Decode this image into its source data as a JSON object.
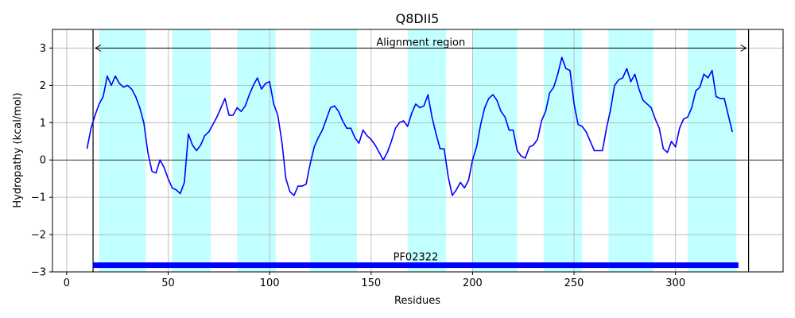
{
  "chart_data": {
    "type": "line",
    "title": "Q8DII5",
    "xlabel": "Residues",
    "ylabel": "Hydropathy (kcal/mol)",
    "xlim": [
      -7,
      353
    ],
    "ylim": [
      -3,
      3.5
    ],
    "xticks": [
      0,
      50,
      100,
      150,
      200,
      250,
      300
    ],
    "yticks": [
      -3,
      -2,
      -1,
      0,
      1,
      2,
      3
    ],
    "ytick_labels": [
      "−3",
      "−2",
      "−1",
      "0",
      "1",
      "2",
      "3"
    ],
    "grid": true,
    "line_color": "#0000ff",
    "highlight_color": "#c2ffff",
    "highlight_regions": [
      [
        16,
        39
      ],
      [
        52,
        71
      ],
      [
        84,
        103
      ],
      [
        120,
        143
      ],
      [
        168,
        187
      ],
      [
        200,
        222
      ],
      [
        235,
        254
      ],
      [
        267,
        289
      ],
      [
        306,
        330
      ]
    ],
    "alignment": {
      "label": "Alignment region",
      "start": 13,
      "end": 336,
      "y": 3.0
    },
    "domain": {
      "label": "PF02322",
      "start": 13,
      "end": 331,
      "y": -2.82,
      "color": "#0000ff"
    },
    "series": [
      {
        "x": [
          10,
          12,
          14,
          16,
          18,
          20,
          22,
          24,
          26,
          28,
          30,
          32,
          34,
          36,
          38,
          40,
          42,
          44,
          46,
          48,
          50,
          52,
          54,
          56,
          58,
          60,
          62,
          64,
          66,
          68,
          70,
          72,
          74,
          76,
          78,
          80,
          82,
          84,
          86,
          88,
          90,
          92,
          94,
          96,
          98,
          100,
          102,
          104,
          106,
          108,
          110,
          112,
          114,
          116,
          118,
          120,
          122,
          124,
          126,
          128,
          130,
          132,
          134,
          136,
          138,
          140,
          142,
          144,
          146,
          148,
          150,
          152,
          154,
          156,
          158,
          160,
          162,
          164,
          166,
          168,
          170,
          172,
          174,
          176,
          178,
          180,
          182,
          184,
          186,
          188,
          190,
          192,
          194,
          196,
          198,
          200,
          202,
          204,
          206,
          208,
          210,
          212,
          214,
          216,
          218,
          220,
          222,
          224,
          226,
          228,
          230,
          232,
          234,
          236,
          238,
          240,
          242,
          244,
          246,
          248,
          250,
          252,
          254,
          256,
          258,
          260,
          262,
          264,
          266,
          268,
          270,
          272,
          274,
          276,
          278,
          280,
          282,
          284,
          286,
          288,
          290,
          292,
          294,
          296,
          298,
          300,
          302,
          304,
          306,
          308,
          310,
          312,
          314,
          316,
          318,
          320,
          322,
          324,
          326,
          328
        ],
        "values": [
          0.3,
          0.85,
          1.2,
          1.5,
          1.7,
          2.25,
          2.0,
          2.25,
          2.05,
          1.95,
          2.0,
          1.9,
          1.7,
          1.4,
          1.0,
          0.2,
          -0.3,
          -0.35,
          0.0,
          -0.2,
          -0.5,
          -0.75,
          -0.8,
          -0.9,
          -0.6,
          0.7,
          0.4,
          0.25,
          0.4,
          0.65,
          0.75,
          0.95,
          1.15,
          1.4,
          1.65,
          1.2,
          1.2,
          1.4,
          1.3,
          1.45,
          1.75,
          2.0,
          2.2,
          1.9,
          2.05,
          2.1,
          1.5,
          1.2,
          0.5,
          -0.5,
          -0.85,
          -0.95,
          -0.7,
          -0.7,
          -0.65,
          -0.1,
          0.35,
          0.6,
          0.8,
          1.1,
          1.4,
          1.45,
          1.3,
          1.05,
          0.85,
          0.85,
          0.6,
          0.45,
          0.8,
          0.65,
          0.55,
          0.4,
          0.2,
          0.0,
          0.2,
          0.5,
          0.85,
          1.0,
          1.05,
          0.9,
          1.25,
          1.5,
          1.4,
          1.45,
          1.75,
          1.15,
          0.7,
          0.3,
          0.3,
          -0.45,
          -0.95,
          -0.8,
          -0.6,
          -0.75,
          -0.55,
          0.0,
          0.35,
          0.95,
          1.4,
          1.65,
          1.75,
          1.6,
          1.3,
          1.15,
          0.8,
          0.8,
          0.25,
          0.1,
          0.05,
          0.35,
          0.4,
          0.55,
          1.05,
          1.3,
          1.8,
          1.95,
          2.3,
          2.75,
          2.45,
          2.4,
          1.5,
          0.95,
          0.9,
          0.75,
          0.5,
          0.25,
          0.25,
          0.25,
          0.85,
          1.35,
          2.0,
          2.15,
          2.2,
          2.45,
          2.1,
          2.3,
          1.9,
          1.6,
          1.5,
          1.4,
          1.1,
          0.85,
          0.3,
          0.2,
          0.5,
          0.35,
          0.85,
          1.1,
          1.15,
          1.4,
          1.85,
          1.95,
          2.3,
          2.2,
          2.4,
          1.7,
          1.65,
          1.65,
          1.2,
          0.75
        ]
      }
    ]
  }
}
